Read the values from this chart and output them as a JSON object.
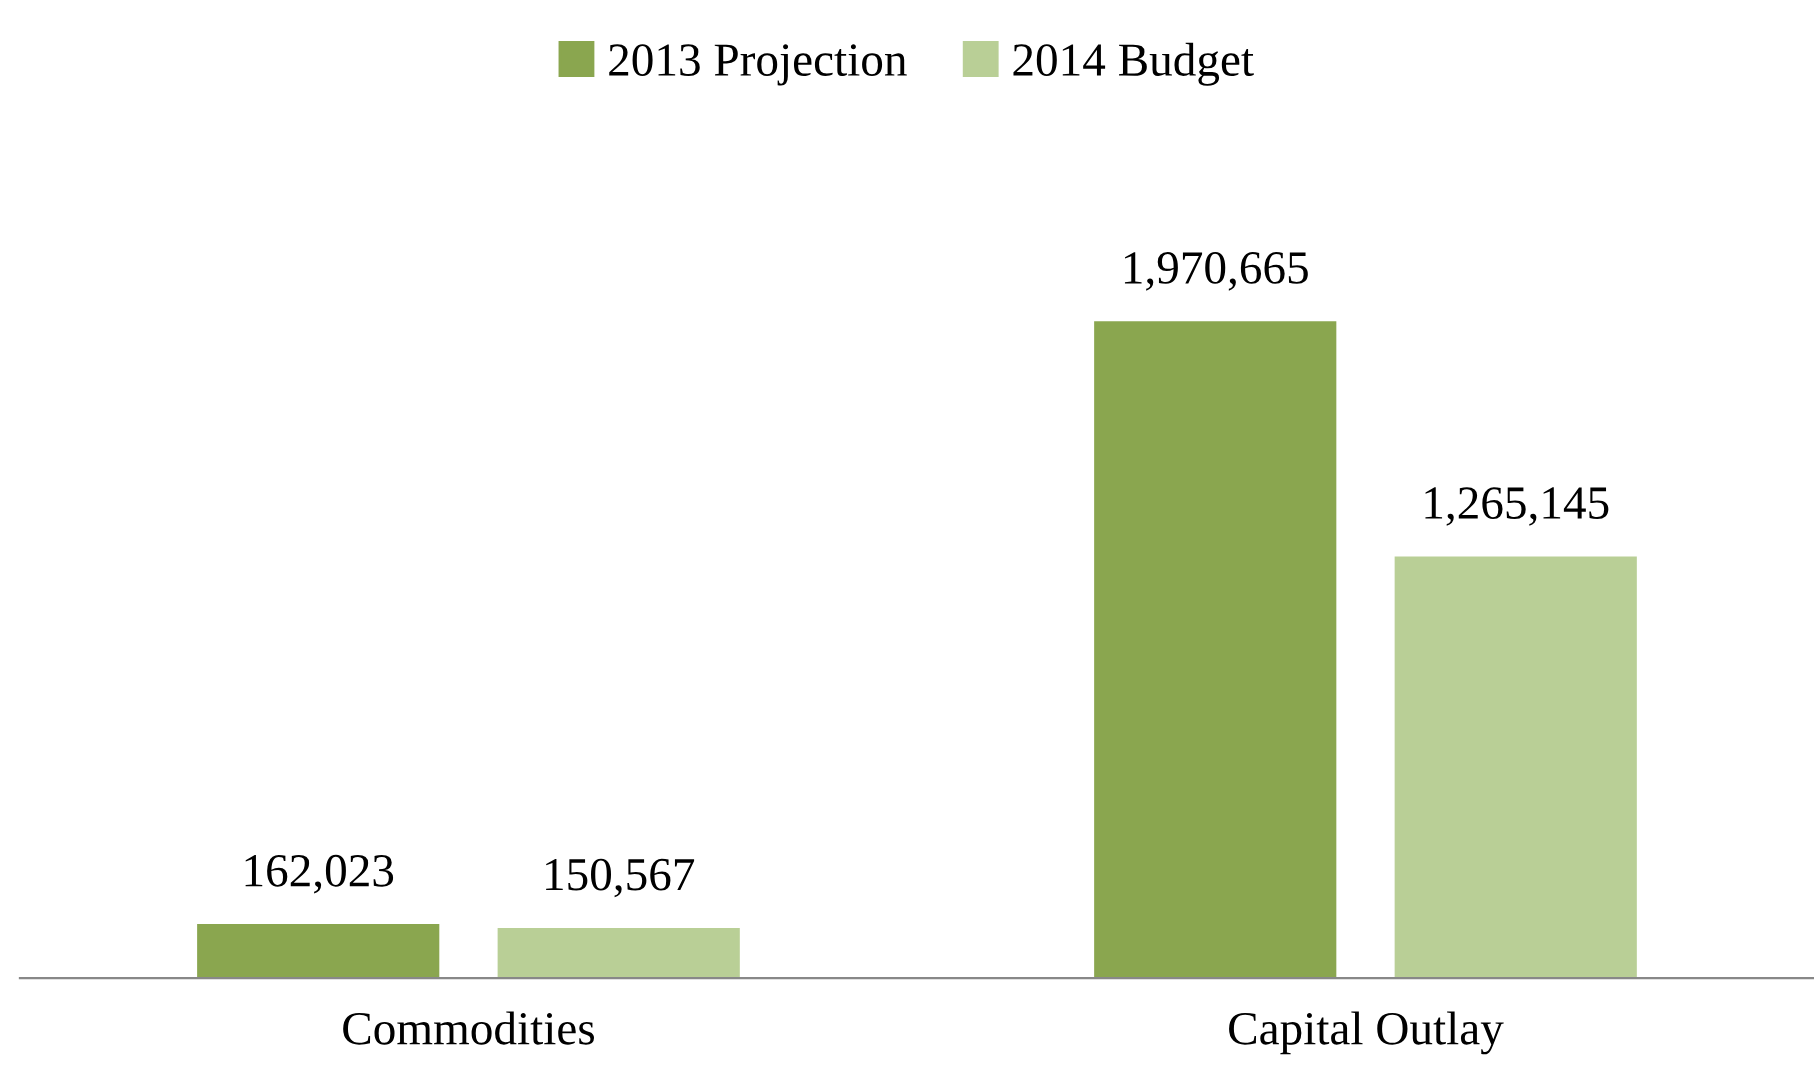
{
  "chart_data": {
    "type": "bar",
    "categories": [
      "Commodities",
      "Capital Outlay"
    ],
    "series": [
      {
        "name": "2013 Projection",
        "color": "#8aa64f",
        "values": [
          162023,
          1970665
        ],
        "value_labels": [
          "162,023",
          "1,970,665"
        ]
      },
      {
        "name": "2014 Budget",
        "color": "#b9cf96",
        "values": [
          150567,
          1265145
        ],
        "value_labels": [
          "150,567",
          "1,265,145"
        ]
      }
    ],
    "legend": "top",
    "grid": false,
    "tick_labels": "x"
  }
}
